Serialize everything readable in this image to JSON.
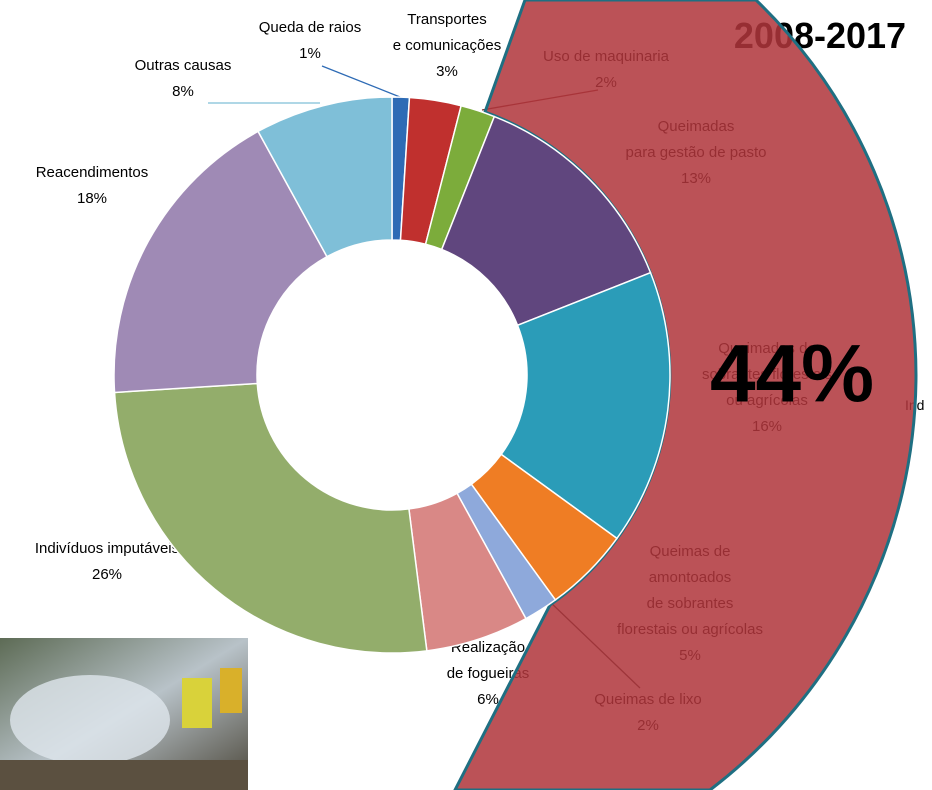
{
  "chart_data": {
    "type": "donut",
    "title": "2008-2017",
    "categories": [
      "Queda de raios",
      "Transportes\ne  comunicações",
      "Uso de maquinaria",
      "Queimadas\npara gestão de pasto",
      "Queimadas de\nsobrantes florestais\nou agrícolas",
      "Queimas de\namontoados\nde  sobrantes\nflorestais ou agrícolas",
      "Queimas de lixo",
      "Realização\nde  fogueiras",
      "Indivíduos  imputáveis",
      "Reacendimentos",
      "Outras causas"
    ],
    "values": [
      1,
      3,
      2,
      13,
      16,
      5,
      2,
      6,
      26,
      18,
      8
    ],
    "value_labels": [
      "1%",
      "3%",
      "2%",
      "13%",
      "16%",
      "5%",
      "2%",
      "6%",
      "26%",
      "18%",
      "8%"
    ],
    "colors": [
      "#2e6bb5",
      "#c0302e",
      "#7cac3b",
      "#60467e",
      "#2b9cb8",
      "#ef7d24",
      "#8ea9db",
      "#d98886",
      "#93ad6b",
      "#9f8ab5",
      "#7fbfd8"
    ],
    "highlight_label": "44%",
    "side_label": "Ind"
  }
}
